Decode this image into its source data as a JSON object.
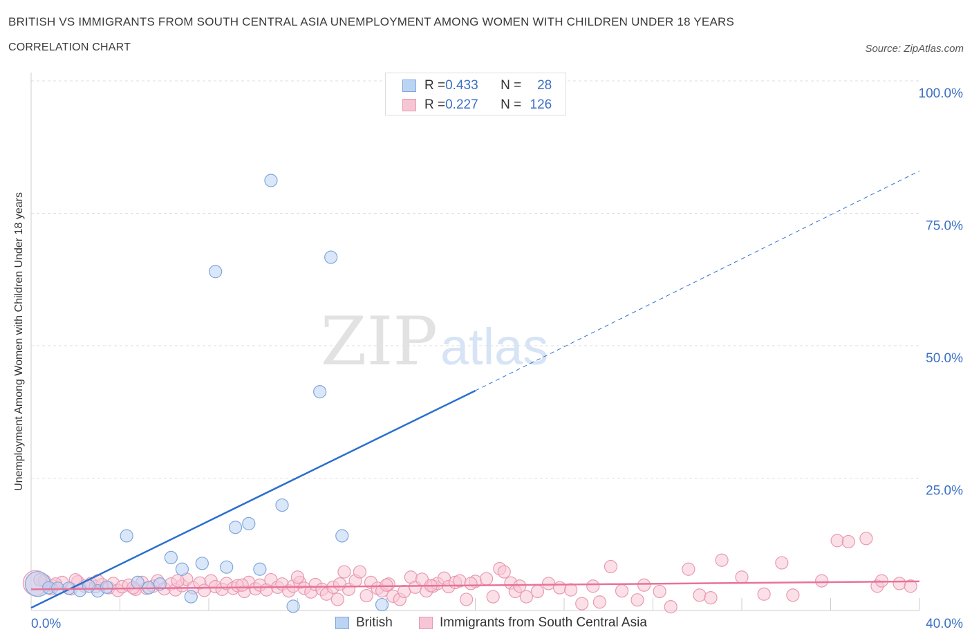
{
  "header": {
    "title": "BRITISH VS IMMIGRANTS FROM SOUTH CENTRAL ASIA UNEMPLOYMENT AMONG WOMEN WITH CHILDREN UNDER 18 YEARS",
    "subtitle": "CORRELATION CHART",
    "source": "Source: ZipAtlas.com"
  },
  "watermark": {
    "zip": "ZIP",
    "atlas": "atlas"
  },
  "colors": {
    "british_fill": "#bcd4f4",
    "british_stroke": "#7ea6dc",
    "british_line": "#2a6fce",
    "immigrants_fill": "#f7c6d5",
    "immigrants_stroke": "#e899b2",
    "immigrants_line": "#e8729a",
    "axis_text": "#3b6fc4",
    "grid": "#dddddd"
  },
  "legend_top": {
    "rows": [
      {
        "r_label": "R = ",
        "r_value": "0.433",
        "n_label": "N = ",
        "n_value": "28"
      },
      {
        "r_label": "R = ",
        "r_value": "0.227",
        "n_label": "N = ",
        "n_value": "126"
      }
    ]
  },
  "legend_bottom": [
    "British",
    "Immigrants from South Central Asia"
  ],
  "chart_data": {
    "type": "scatter",
    "title": "BRITISH VS IMMIGRANTS FROM SOUTH CENTRAL ASIA UNEMPLOYMENT AMONG WOMEN WITH CHILDREN UNDER 18 YEARS",
    "subtitle": "CORRELATION CHART",
    "xlabel": "",
    "ylabel": "Unemployment Among Women with Children Under 18 years",
    "xlim": [
      0,
      40
    ],
    "ylim": [
      0,
      100
    ],
    "x_tick_labels": [
      "0.0%",
      "40.0%"
    ],
    "y_tick_labels": [
      "25.0%",
      "50.0%",
      "75.0%",
      "100.0%"
    ],
    "y_ticks": [
      25,
      50,
      75,
      100
    ],
    "grid": true,
    "legend_position": "bottom",
    "series": [
      {
        "name": "British",
        "R": 0.433,
        "N": 28,
        "trend": {
          "x0": 0,
          "y0": 0.5,
          "x1": 20,
          "y1": 41.5,
          "extends_to_x": 40,
          "extends_to_y": 83
        },
        "points": [
          [
            0.3,
            5.0,
            1
          ],
          [
            0.8,
            4.3,
            0
          ],
          [
            1.2,
            4.2,
            0
          ],
          [
            1.7,
            4.2,
            0
          ],
          [
            2.2,
            3.8,
            0
          ],
          [
            3.0,
            3.7,
            0
          ],
          [
            3.4,
            4.4,
            0
          ],
          [
            4.3,
            14.1,
            0
          ],
          [
            5.3,
            4.3,
            0
          ],
          [
            6.3,
            10.0,
            0
          ],
          [
            6.8,
            7.8,
            0
          ],
          [
            7.2,
            2.6,
            0
          ],
          [
            7.7,
            8.9,
            0
          ],
          [
            8.8,
            8.2,
            0
          ],
          [
            9.2,
            15.7,
            0
          ],
          [
            9.8,
            16.4,
            0
          ],
          [
            10.3,
            7.8,
            0
          ],
          [
            10.8,
            81.2,
            0
          ],
          [
            11.3,
            19.9,
            0
          ],
          [
            11.8,
            0.8,
            0
          ],
          [
            13.0,
            41.3,
            0
          ],
          [
            13.5,
            66.7,
            0
          ],
          [
            14.0,
            14.1,
            0
          ],
          [
            15.8,
            1.1,
            0
          ],
          [
            8.3,
            64.0,
            0
          ],
          [
            5.8,
            5.0,
            0
          ],
          [
            2.6,
            4.6,
            0
          ],
          [
            4.8,
            5.3,
            0
          ]
        ]
      },
      {
        "name": "Immigrants from South Central Asia",
        "R": 0.227,
        "N": 126,
        "trend": {
          "x0": 0,
          "y0": 4.0,
          "x1": 40,
          "y1": 5.5
        },
        "points": [
          [
            0.2,
            5.2,
            1
          ],
          [
            0.6,
            5.6,
            0
          ],
          [
            1.0,
            4.6,
            0
          ],
          [
            1.4,
            5.3,
            0
          ],
          [
            1.8,
            4.1,
            0
          ],
          [
            2.1,
            5.4,
            0
          ],
          [
            2.4,
            4.6,
            0
          ],
          [
            2.7,
            5.1,
            0
          ],
          [
            2.9,
            4.5,
            0
          ],
          [
            3.2,
            4.9,
            0
          ],
          [
            3.5,
            4.3,
            0
          ],
          [
            3.7,
            5.1,
            0
          ],
          [
            3.9,
            3.8,
            0
          ],
          [
            4.1,
            4.5,
            0
          ],
          [
            4.4,
            4.8,
            0
          ],
          [
            4.7,
            4.0,
            0
          ],
          [
            5.0,
            5.3,
            0
          ],
          [
            5.2,
            4.2,
            0
          ],
          [
            5.5,
            4.6,
            0
          ],
          [
            5.7,
            5.6,
            0
          ],
          [
            6.0,
            4.1,
            0
          ],
          [
            6.3,
            5.0,
            0
          ],
          [
            6.5,
            3.9,
            0
          ],
          [
            6.8,
            4.7,
            0
          ],
          [
            7.0,
            5.9,
            0
          ],
          [
            7.3,
            4.3,
            0
          ],
          [
            7.6,
            5.2,
            0
          ],
          [
            7.8,
            3.8,
            0
          ],
          [
            8.1,
            5.6,
            0
          ],
          [
            8.3,
            4.5,
            0
          ],
          [
            8.6,
            4.0,
            0
          ],
          [
            8.8,
            5.1,
            0
          ],
          [
            9.1,
            4.2,
            0
          ],
          [
            9.3,
            4.7,
            0
          ],
          [
            9.6,
            3.6,
            0
          ],
          [
            9.8,
            5.3,
            0
          ],
          [
            10.1,
            4.1,
            0
          ],
          [
            10.3,
            4.8,
            0
          ],
          [
            10.6,
            3.9,
            0
          ],
          [
            10.8,
            5.8,
            0
          ],
          [
            11.1,
            4.4,
            0
          ],
          [
            11.3,
            5.0,
            0
          ],
          [
            11.6,
            3.7,
            0
          ],
          [
            11.8,
            4.6,
            0
          ],
          [
            12.1,
            5.3,
            0
          ],
          [
            12.3,
            4.2,
            0
          ],
          [
            12.6,
            3.5,
            0
          ],
          [
            12.8,
            4.9,
            0
          ],
          [
            13.1,
            4.0,
            0
          ],
          [
            13.3,
            3.1,
            0
          ],
          [
            13.6,
            4.4,
            0
          ],
          [
            13.8,
            2.1,
            0
          ],
          [
            14.1,
            7.3,
            0
          ],
          [
            14.3,
            4.0,
            0
          ],
          [
            14.6,
            5.6,
            0
          ],
          [
            14.8,
            7.3,
            0
          ],
          [
            15.1,
            2.8,
            0
          ],
          [
            15.3,
            5.3,
            0
          ],
          [
            15.6,
            4.2,
            0
          ],
          [
            15.8,
            3.7,
            0
          ],
          [
            16.1,
            5.0,
            0
          ],
          [
            16.3,
            2.7,
            0
          ],
          [
            16.6,
            2.1,
            0
          ],
          [
            16.8,
            3.6,
            0
          ],
          [
            17.1,
            6.3,
            0
          ],
          [
            17.3,
            4.4,
            0
          ],
          [
            17.6,
            5.9,
            0
          ],
          [
            17.8,
            3.7,
            0
          ],
          [
            18.1,
            4.6,
            0
          ],
          [
            18.3,
            5.1,
            0
          ],
          [
            18.6,
            6.1,
            0
          ],
          [
            18.8,
            4.5,
            0
          ],
          [
            19.1,
            5.3,
            0
          ],
          [
            19.3,
            5.6,
            0
          ],
          [
            19.6,
            2.1,
            0
          ],
          [
            20.0,
            5.5,
            0
          ],
          [
            20.5,
            6.0,
            0
          ],
          [
            20.8,
            2.6,
            0
          ],
          [
            21.1,
            7.9,
            0
          ],
          [
            21.3,
            7.3,
            0
          ],
          [
            21.6,
            5.2,
            0
          ],
          [
            21.8,
            3.6,
            0
          ],
          [
            22.3,
            2.6,
            0
          ],
          [
            22.8,
            3.6,
            0
          ],
          [
            23.3,
            5.1,
            0
          ],
          [
            23.8,
            4.3,
            0
          ],
          [
            24.3,
            3.9,
            0
          ],
          [
            24.8,
            1.3,
            0
          ],
          [
            25.3,
            4.6,
            0
          ],
          [
            25.6,
            1.6,
            0
          ],
          [
            26.1,
            8.3,
            0
          ],
          [
            26.6,
            3.7,
            0
          ],
          [
            27.3,
            2.0,
            0
          ],
          [
            27.6,
            4.8,
            0
          ],
          [
            28.3,
            3.6,
            0
          ],
          [
            28.8,
            0.7,
            0
          ],
          [
            29.6,
            7.8,
            0
          ],
          [
            30.1,
            2.9,
            0
          ],
          [
            30.6,
            2.4,
            0
          ],
          [
            31.1,
            9.5,
            0
          ],
          [
            32.0,
            6.3,
            0
          ],
          [
            33.0,
            3.1,
            0
          ],
          [
            33.8,
            9.0,
            0
          ],
          [
            34.3,
            2.9,
            0
          ],
          [
            35.6,
            5.6,
            0
          ],
          [
            36.3,
            13.2,
            0
          ],
          [
            36.8,
            13.0,
            0
          ],
          [
            37.6,
            13.6,
            0
          ],
          [
            38.1,
            4.6,
            0
          ],
          [
            38.3,
            5.6,
            0
          ],
          [
            39.1,
            5.1,
            0
          ],
          [
            39.6,
            4.6,
            0
          ],
          [
            1.1,
            5.0,
            0
          ],
          [
            2.0,
            5.8,
            0
          ],
          [
            3.0,
            5.6,
            0
          ],
          [
            4.6,
            4.3,
            0
          ],
          [
            6.6,
            5.6,
            0
          ],
          [
            9.5,
            4.8,
            0
          ],
          [
            12.0,
            6.3,
            0
          ],
          [
            13.9,
            5.0,
            0
          ],
          [
            16.0,
            4.8,
            0
          ],
          [
            18.0,
            4.7,
            0
          ],
          [
            19.8,
            5.1,
            0
          ],
          [
            22.0,
            4.6,
            0
          ],
          [
            0.4,
            5.8,
            0
          ],
          [
            0.9,
            4.1,
            0
          ]
        ]
      }
    ]
  }
}
